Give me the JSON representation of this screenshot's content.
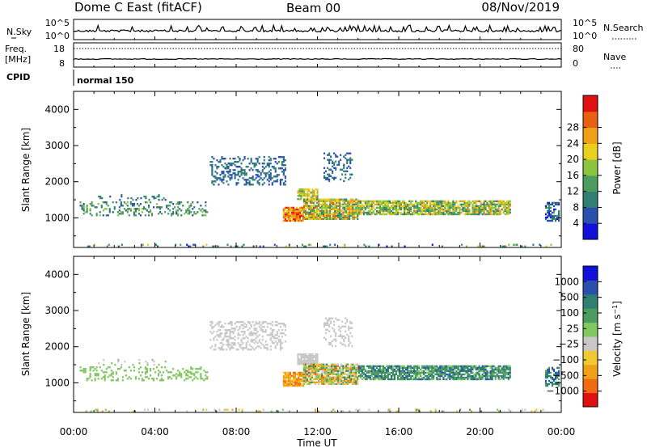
{
  "header": {
    "station": "Dome C East (fitACF)",
    "beam": "Beam 00",
    "date": "08/Nov/2019"
  },
  "strips": {
    "nsky_label": "N.Sky",
    "nsky_top": "10^5",
    "nsky_bottom": "10^0",
    "nsearch_label": "N.Search",
    "nsearch_top": "10^5",
    "nsearch_bottom": "10^0",
    "freq_label": "Freq.",
    "freq_unit": "[MHz]",
    "freq_top": "18",
    "freq_bottom": "8",
    "nave_label": "Nave",
    "nave_top": "80",
    "nave_bottom": "0",
    "cpid_label": "CPID",
    "cpid_value": "normal 150"
  },
  "colors": {
    "power": [
      "#1010d8",
      "#2a4fae",
      "#2f7f72",
      "#4c9c60",
      "#8cc43c",
      "#e8d020",
      "#f0a018",
      "#e86010",
      "#e01010"
    ],
    "velocity": [
      "#e01010",
      "#f06a10",
      "#f0a018",
      "#f0c830",
      "#c8c8c8",
      "#80c860",
      "#4c9c60",
      "#2f7f72",
      "#2a4fae",
      "#1010d8"
    ]
  },
  "chart_data": [
    {
      "type": "heatmap",
      "panel": "power",
      "xlabel": "",
      "ylabel": "Slant Range [km]",
      "xlim_hours": [
        0,
        24
      ],
      "ylim_km": [
        180,
        4500
      ],
      "yticks": [
        "1000",
        "2000",
        "3000",
        "4000"
      ],
      "colorbar_label": "Power [dB]",
      "colorbar_ticks": [
        "4",
        "8",
        "12",
        "16",
        "20",
        "24",
        "28"
      ],
      "colorbar_range_db": [
        0,
        32
      ]
    },
    {
      "type": "heatmap",
      "panel": "velocity",
      "xlabel": "Time UT",
      "ylabel": "Slant Range [km]",
      "xlim_hours": [
        0,
        24
      ],
      "ylim_km": [
        180,
        4500
      ],
      "xticks": [
        "00:00",
        "04:00",
        "08:00",
        "12:00",
        "16:00",
        "20:00",
        "00:00"
      ],
      "yticks": [
        "1000",
        "2000",
        "3000",
        "4000"
      ],
      "colorbar_label": "Velocity [m s^-1]",
      "colorbar_ticks": [
        "1000",
        "500",
        "100",
        "25",
        "−25",
        "−100",
        "−500",
        "−1000"
      ]
    }
  ]
}
